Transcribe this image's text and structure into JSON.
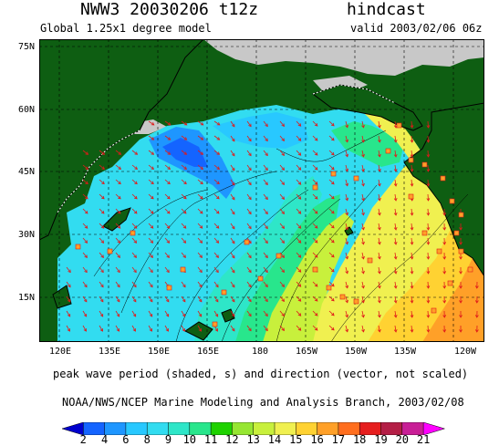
{
  "header": {
    "title": "NWW3 20030206 t12z",
    "mode": "hindcast",
    "model": "Global 1.25x1 degree model",
    "valid": "valid 2003/02/06 06z"
  },
  "axes": {
    "lat_labels": [
      "75N",
      "60N",
      "45N",
      "30N",
      "15N"
    ],
    "lon_labels": [
      "120E",
      "135E",
      "150E",
      "165E",
      "180",
      "165W",
      "150W",
      "135W",
      "120W"
    ]
  },
  "captions": {
    "field": "peak wave period (shaded, s) and direction (vector, not scaled)",
    "credit": "NOAA/NWS/NCEP Marine Modeling and Analysis Branch, 2003/02/08"
  },
  "colorbar": {
    "labels": [
      "2",
      "4",
      "6",
      "8",
      "9",
      "10",
      "11",
      "12",
      "13",
      "14",
      "15",
      "16",
      "17",
      "18",
      "19",
      "20",
      "21"
    ],
    "colors": [
      "#0000cd",
      "#1464ff",
      "#1e96ff",
      "#28c8ff",
      "#32dcf0",
      "#2ee6c8",
      "#28e68c",
      "#1ed200",
      "#96e632",
      "#c8f03c",
      "#f0f050",
      "#ffd232",
      "#ffa028",
      "#ff6e1e",
      "#e61e1e",
      "#b41e46",
      "#c81e96",
      "#ff00ff"
    ]
  },
  "colors": {
    "land": "#0e5e12",
    "ice": "#c8c8c8",
    "arrow": "#e01a1a",
    "coast_outline": "#000000"
  }
}
